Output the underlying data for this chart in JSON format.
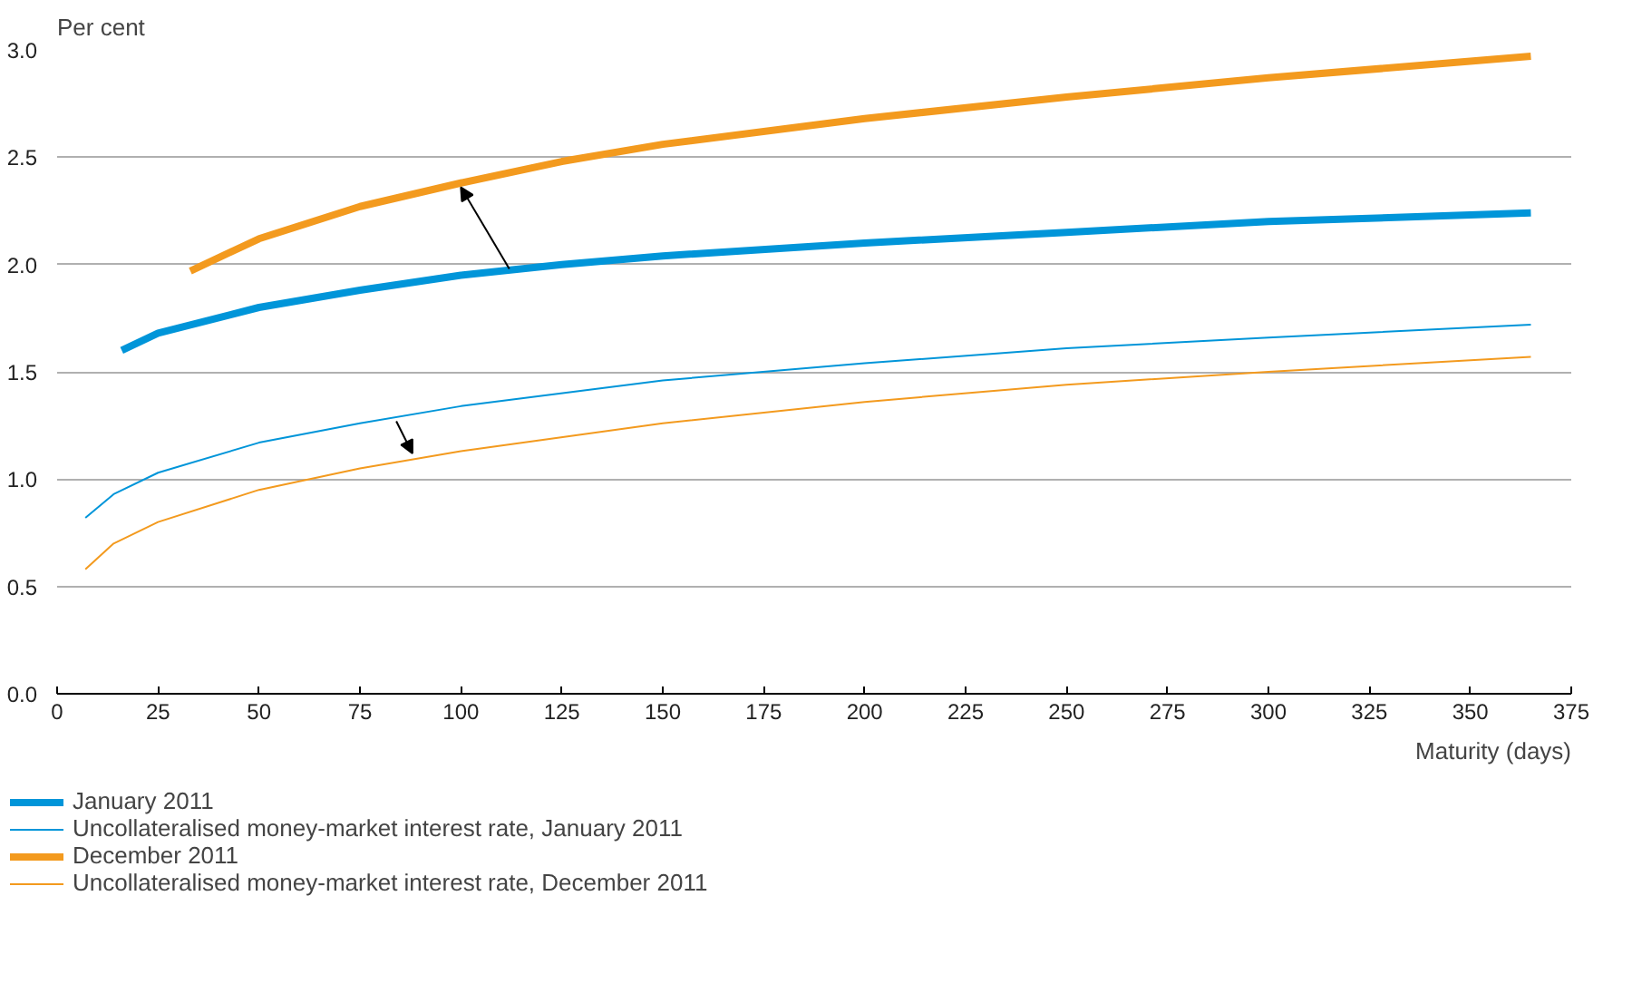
{
  "chart_data": {
    "type": "line",
    "ylabel": "Per cent",
    "xlabel": "Maturity (days)",
    "xlim": [
      0,
      375
    ],
    "xticks": [
      0,
      25,
      50,
      75,
      100,
      125,
      150,
      175,
      200,
      225,
      250,
      275,
      300,
      325,
      350,
      375
    ],
    "ylim": [
      0,
      3.0
    ],
    "yticks": [
      {
        "value": 0,
        "label": "0.0"
      },
      {
        "value": 0.5,
        "label": "0.5"
      },
      {
        "value": 1,
        "label": "1.0"
      },
      {
        "value": 1.5,
        "label": "1.5"
      },
      {
        "value": 2,
        "label": "2.0"
      },
      {
        "value": 2.5,
        "label": "2.5"
      },
      {
        "value": 3,
        "label": "3.0"
      }
    ],
    "grid": "y",
    "legend": "bottom",
    "line_style": "solid",
    "series": [
      {
        "name": "January 2011",
        "color": "#0095d9",
        "x": [
          16,
          25,
          50,
          75,
          100,
          125,
          150,
          200,
          250,
          300,
          365
        ],
        "values": [
          1.6,
          1.68,
          1.8,
          1.88,
          1.95,
          2.0,
          2.04,
          2.1,
          2.15,
          2.2,
          2.24
        ]
      },
      {
        "name": "Uncollateralised money-market interest rate, January 2011",
        "color": "#0095d9",
        "x": [
          7,
          14,
          25,
          50,
          75,
          100,
          150,
          200,
          250,
          300,
          365
        ],
        "values": [
          0.82,
          0.93,
          1.03,
          1.17,
          1.26,
          1.34,
          1.46,
          1.54,
          1.61,
          1.66,
          1.72
        ]
      },
      {
        "name": "December 2011",
        "color": "#f39a1e",
        "x": [
          33,
          50,
          75,
          100,
          125,
          150,
          200,
          250,
          300,
          365
        ],
        "values": [
          1.97,
          2.12,
          2.27,
          2.38,
          2.48,
          2.56,
          2.68,
          2.78,
          2.87,
          2.97
        ]
      },
      {
        "name": "Uncollateralised money-market interest rate, December 2011",
        "color": "#f39a1e",
        "x": [
          7,
          14,
          25,
          50,
          75,
          100,
          150,
          200,
          250,
          300,
          365
        ],
        "values": [
          0.58,
          0.7,
          0.8,
          0.95,
          1.05,
          1.13,
          1.26,
          1.36,
          1.44,
          1.5,
          1.57
        ]
      }
    ]
  }
}
